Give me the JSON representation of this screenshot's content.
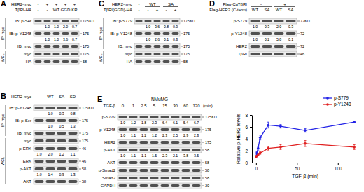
{
  "blots": {
    "panels": [
      {
        "label": "A",
        "title": null,
        "headers": [
          {
            "name": "HER2-myc",
            "cells": [
              "-",
              "+",
              "+",
              "+",
              "+"
            ],
            "unit": null
          },
          {
            "name": "TβRI-HA",
            "cells": [
              "-",
              "-",
              "WT",
              "GGD",
              "KR"
            ],
            "unit": null
          }
        ],
        "rows": [
          {
            "group": "IP: myc",
            "name": "IB: p-Ser",
            "quant": [
              null,
              "1.0",
              "1.0",
              "2.0",
              "0.7"
            ],
            "mw": "175KD"
          },
          {
            "group": "IP: myc",
            "name": "IB: p-Y1248",
            "quant": [
              null,
              "1.0",
              "1.0",
              "3.6",
              "0.7"
            ],
            "mw": "175"
          },
          {
            "group": "IP: myc",
            "name": "IB: myc",
            "quant": null,
            "mw": "175"
          },
          {
            "group": "WCL",
            "name": "myc",
            "quant": null,
            "mw": "175"
          },
          {
            "group": "WCL",
            "name": "HA",
            "quant": null,
            "mw": "58"
          }
        ]
      },
      {
        "label": "B",
        "title": null,
        "headers": [
          {
            "name": "HER2-myc",
            "cells": [
              "-",
              "WT",
              "SA",
              "SD"
            ],
            "unit": null
          }
        ],
        "rows": [
          {
            "group": "IP: myc",
            "name": "IB: p-Y1248",
            "quant": [
              null,
              "1.0",
              "0.3",
              "0.8"
            ],
            "mw": "175KD"
          },
          {
            "group": "IP: myc",
            "name": "IB: p-Ser",
            "quant": [
              null,
              "1.0",
              "0.5",
              "1.3"
            ],
            "mw": "175"
          },
          {
            "group": "IP: myc",
            "name": "IB: myc",
            "quant": null,
            "mw": "175"
          },
          {
            "group": "WCL",
            "name": "myc",
            "quant": null,
            "mw": "175"
          },
          {
            "group": "WCL",
            "name": "p-ERK",
            "quant": [
              "1.0",
              "2.0",
              "1.2",
              "1.1"
            ],
            "mw": "46"
          },
          {
            "group": "WCL",
            "name": "ERK",
            "quant": null,
            "mw": "46"
          },
          {
            "group": "WCL",
            "name": "p-AKT",
            "quant": [
              "1.0",
              "1.4",
              "0.9",
              "1.3"
            ],
            "mw": "58"
          },
          {
            "group": "WCL",
            "name": "AKT",
            "quant": null,
            "mw": "58"
          }
        ]
      },
      {
        "label": "C",
        "title": null,
        "headers": [
          {
            "name": "HER2-myc",
            "cells": [
              "-",
              "WT",
              null,
              "SA",
              null
            ],
            "unit": null
          },
          {
            "name": "TβRI(GGD)-HA",
            "cells": [
              "-",
              "-",
              "+",
              "-",
              "+"
            ],
            "unit": null
          }
        ],
        "rows": [
          {
            "group": "IP: myc",
            "name": "IB: p-S779",
            "quant": [
              null,
              "1.0",
              "3.6",
              "0.8",
              "0.9"
            ],
            "mw": "175KD"
          },
          {
            "group": "IP: myc",
            "name": "IB: p-Y1248",
            "quant": [
              null,
              "1.0",
              "2.6",
              "0.1",
              "0.3"
            ],
            "mw": "175"
          },
          {
            "group": "IP: myc",
            "name": "IB: myc",
            "quant": null,
            "mw": "175"
          },
          {
            "group": "WCL",
            "name": "myc",
            "quant": null,
            "mw": "175"
          },
          {
            "group": "WCL",
            "name": "HA",
            "quant": null,
            "mw": "58"
          }
        ]
      },
      {
        "label": "D",
        "title": null,
        "headers": [
          {
            "name": "Flag-CaTβRI",
            "cells": [
              "-",
              null,
              "+",
              null
            ],
            "unit": null
          },
          {
            "name": "Flag-HER2 (C-term)",
            "cells": [
              "WT",
              "SA",
              "WT",
              "SA"
            ],
            "unit": null
          }
        ],
        "rows": [
          {
            "group": null,
            "name": "p-S779",
            "quant": [
              "1.0",
              "0.3",
              "2.0",
              "0.3"
            ],
            "mw": "72KD"
          },
          {
            "group": null,
            "name": "p-Y1248",
            "quant": [
              "1.0",
              "0.2",
              "5.8",
              "0.1"
            ],
            "mw": "72"
          },
          {
            "group": null,
            "name": "HER2",
            "quant": null,
            "mw": "72"
          },
          {
            "group": null,
            "name": "TβRI",
            "quant": null,
            "mw": "46"
          }
        ]
      },
      {
        "label": "E",
        "title": "NMuMG",
        "headers": [
          {
            "name": "TGF-β",
            "cells": [
              "0",
              "1",
              "2.5",
              "5",
              "15",
              "30",
              "60",
              "120"
            ],
            "unit": "(min)"
          }
        ],
        "rows": [
          {
            "group": null,
            "name": "p-S779",
            "quant": [
              "1.0",
              "1.2",
              "1.8",
              "2.3",
              "6.4",
              "6.1",
              "5.4",
              "6.7"
            ],
            "mw": "175KD"
          },
          {
            "group": null,
            "name": "p-Y1248",
            "quant": [
              "1.0",
              "1.1",
              "1.2",
              "1.2",
              "2.3",
              "2.5",
              "2.9",
              "2.3"
            ],
            "mw": "175"
          },
          {
            "group": null,
            "name": "HER2",
            "quant": null,
            "mw": "175"
          },
          {
            "group": null,
            "name": "p-AKT",
            "quant": [
              "1.0",
              "1.1",
              "1.1",
              "1.5",
              "2.3",
              "2.1",
              "3.8",
              "3.5"
            ],
            "mw": "58"
          },
          {
            "group": null,
            "name": "AKT",
            "quant": null,
            "mw": "58"
          },
          {
            "group": null,
            "name": "p-Smad2",
            "quant": null,
            "mw": "58"
          },
          {
            "group": null,
            "name": "Smad2",
            "quant": null,
            "mw": "58"
          },
          {
            "group": null,
            "name": "GAPDH",
            "quant": null,
            "mw": "30"
          }
        ]
      }
    ]
  },
  "chart_data": {
    "type": "line",
    "x_label": "TGF-β (min)",
    "y_label": "Relative p-HER2 levels",
    "x": [
      0,
      1,
      2.5,
      5,
      15,
      30,
      60,
      120
    ],
    "xlim": [
      -5,
      125
    ],
    "xticks": [
      0,
      50,
      100
    ],
    "ylim": [
      0,
      8
    ],
    "yticks": [
      0,
      2,
      4,
      6,
      8
    ],
    "legend": "top-right",
    "marker": "circle",
    "series": [
      {
        "name": "p-S779",
        "color": "#2323e6",
        "values": [
          1.0,
          1.6,
          2.4,
          4.2,
          6.3,
          6.1,
          5.4,
          6.8
        ],
        "errors": [
          0,
          0.2,
          0.3,
          0.4,
          0.5,
          0.3,
          0.3,
          0.1
        ]
      },
      {
        "name": "p-Y1248",
        "color": "#e02020",
        "values": [
          1.0,
          1.1,
          1.3,
          1.6,
          2.4,
          2.6,
          3.2,
          2.6
        ],
        "errors": [
          0,
          0.1,
          0.1,
          0.2,
          0.3,
          0.4,
          0.5,
          0.4
        ]
      }
    ]
  }
}
